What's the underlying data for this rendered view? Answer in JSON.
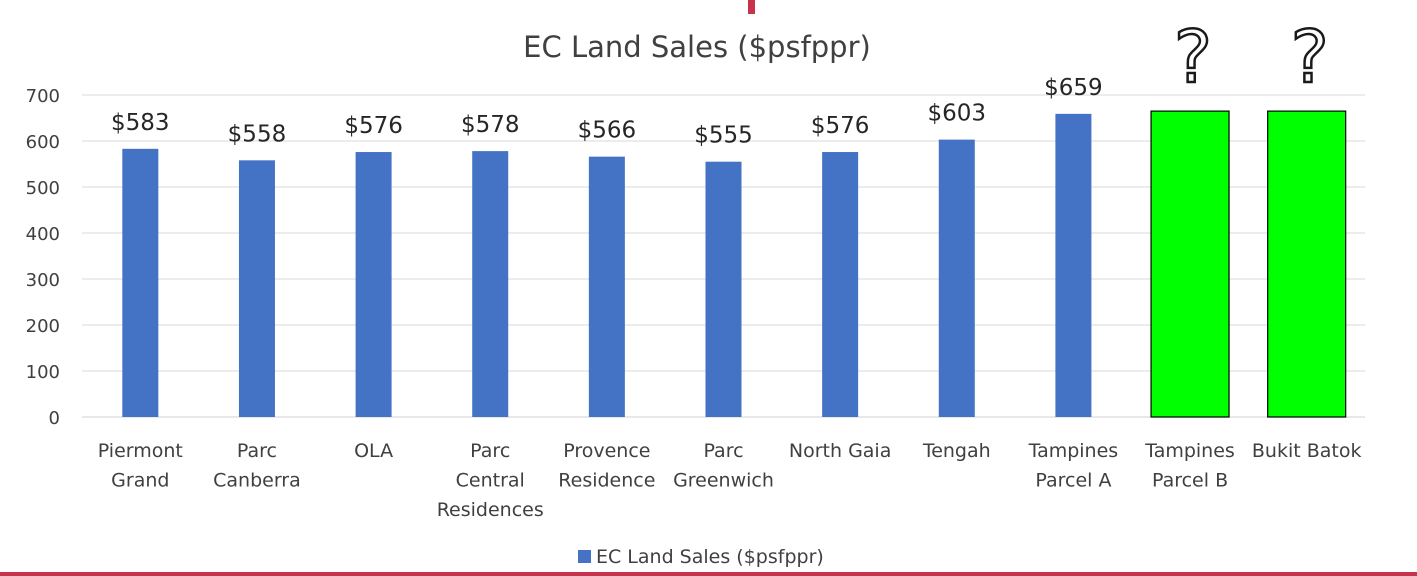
{
  "chart_data": {
    "type": "bar",
    "title": "EC Land Sales ($psfppr)",
    "categories": [
      [
        "Piermont",
        "Grand"
      ],
      [
        "Parc",
        "Canberra"
      ],
      [
        "OLA"
      ],
      [
        "Parc",
        "Central",
        "Residences"
      ],
      [
        "Provence",
        "Residence"
      ],
      [
        "Parc",
        "Greenwich"
      ],
      [
        "North Gaia"
      ],
      [
        "Tengah"
      ],
      [
        "Tampines",
        "Parcel A"
      ],
      [
        "Tampines",
        "Parcel B"
      ],
      [
        "Bukit Batok"
      ]
    ],
    "series": [
      {
        "name": "EC Land Sales ($psfppr)",
        "color": "#4472c4",
        "values": [
          583,
          558,
          576,
          578,
          566,
          555,
          576,
          603,
          659,
          665,
          665
        ],
        "data_labels": [
          "$583",
          "$558",
          "$576",
          "$578",
          "$566",
          "$555",
          "$576",
          "$603",
          "$659",
          "?",
          "?"
        ],
        "label_colors": [
          "#262626",
          "#262626",
          "#262626",
          "#262626",
          "#262626",
          "#262626",
          "#ff0000",
          "#262626",
          "#262626",
          "#262626",
          "#262626"
        ],
        "bar_colors": [
          "#4472c4",
          "#4472c4",
          "#4472c4",
          "#4472c4",
          "#4472c4",
          "#4472c4",
          "#4472c4",
          "#4472c4",
          "#4472c4",
          "#00ff00",
          "#00ff00"
        ]
      }
    ],
    "ylim": [
      0,
      700
    ],
    "yticks": [
      0,
      100,
      200,
      300,
      400,
      500,
      600,
      700
    ],
    "grid": true,
    "legend": "bottom-center"
  }
}
